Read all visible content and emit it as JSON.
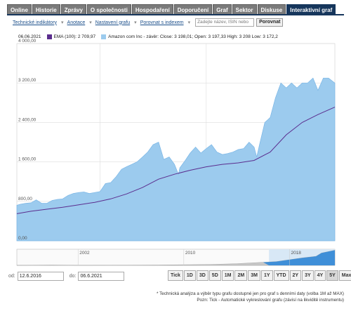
{
  "tabs": [
    {
      "label": "Online",
      "active": false
    },
    {
      "label": "Historie",
      "active": false
    },
    {
      "label": "Zprávy",
      "active": false
    },
    {
      "label": "O společnosti",
      "active": false
    },
    {
      "label": "Hospodaření",
      "active": false
    },
    {
      "label": "Doporučení",
      "active": false
    },
    {
      "label": "Graf",
      "active": false
    },
    {
      "label": "Sektor",
      "active": false
    },
    {
      "label": "Diskuse",
      "active": false
    },
    {
      "label": "Interaktivní graf",
      "active": true
    }
  ],
  "toolbar": {
    "technical": "Technické indikátory",
    "annotation": "Anotace",
    "settings": "Nastavení grafu",
    "compare": "Porovnat s indexem",
    "search_placeholder": "Zadejte název, ISIN nebo",
    "compare_button": "Porovnat"
  },
  "legend": {
    "date": "06.06.2021",
    "ema": "EMA (100): 2 709,97",
    "amazon": "Amazon com Inc - závěr: Close: 3 198,01; Open: 3 197,33 High: 3 208 Low: 3 172,2",
    "ema_color": "#5b2d8e",
    "amazon_color": "#9ccbee"
  },
  "chart_data": {
    "type": "area",
    "ylim": [
      0,
      4000
    ],
    "yticks": [
      "4 000,00",
      "3 200,00",
      "2 400,00",
      "1 600,00",
      "800,00",
      "0,00"
    ],
    "yvalues": [
      4000,
      3200,
      2400,
      1600,
      800,
      0
    ],
    "xlim": [
      "2016-06-12",
      "2021-06-06"
    ],
    "vgrid_dates": [
      "2017-10-01",
      "2019-06-01"
    ],
    "series": [
      {
        "name": "Amazon com Inc",
        "type": "area",
        "x": [
          "2016-06-12",
          "2016-07-01",
          "2016-08-01",
          "2016-09-01",
          "2016-10-01",
          "2016-11-01",
          "2016-12-01",
          "2017-01-01",
          "2017-02-01",
          "2017-03-01",
          "2017-04-01",
          "2017-05-01",
          "2017-06-01",
          "2017-07-01",
          "2017-08-01",
          "2017-09-01",
          "2017-10-01",
          "2017-11-01",
          "2017-12-01",
          "2018-01-01",
          "2018-02-01",
          "2018-03-01",
          "2018-04-01",
          "2018-05-01",
          "2018-06-01",
          "2018-07-01",
          "2018-08-01",
          "2018-09-01",
          "2018-10-01",
          "2018-11-01",
          "2018-12-01",
          "2018-12-24",
          "2019-01-01",
          "2019-02-01",
          "2019-03-01",
          "2019-04-01",
          "2019-05-01",
          "2019-06-01",
          "2019-07-01",
          "2019-08-01",
          "2019-09-01",
          "2019-10-01",
          "2019-11-01",
          "2019-12-01",
          "2020-01-01",
          "2020-02-01",
          "2020-03-01",
          "2020-03-16",
          "2020-04-01",
          "2020-05-01",
          "2020-06-01",
          "2020-07-01",
          "2020-08-01",
          "2020-09-01",
          "2020-10-01",
          "2020-11-01",
          "2020-12-01",
          "2021-01-01",
          "2021-02-01",
          "2021-03-01",
          "2021-04-01",
          "2021-05-01",
          "2021-06-06"
        ],
        "values": [
          720,
          740,
          760,
          770,
          830,
          760,
          760,
          820,
          840,
          850,
          920,
          960,
          980,
          990,
          960,
          980,
          1000,
          1160,
          1180,
          1300,
          1450,
          1500,
          1550,
          1600,
          1700,
          1800,
          1950,
          2000,
          1650,
          1700,
          1550,
          1350,
          1480,
          1630,
          1780,
          1900,
          1780,
          1870,
          1950,
          1800,
          1750,
          1770,
          1800,
          1850,
          1870,
          2000,
          1900,
          1700,
          1950,
          2400,
          2500,
          2900,
          3200,
          3100,
          3200,
          3100,
          3200,
          3200,
          3300,
          3050,
          3300,
          3300,
          3198
        ]
      },
      {
        "name": "EMA (100)",
        "type": "line",
        "x": [
          "2016-06-12",
          "2016-09-01",
          "2016-12-01",
          "2017-03-01",
          "2017-06-01",
          "2017-09-01",
          "2017-12-01",
          "2018-03-01",
          "2018-06-01",
          "2018-09-01",
          "2018-12-01",
          "2019-03-01",
          "2019-06-01",
          "2019-09-01",
          "2019-12-01",
          "2020-03-01",
          "2020-06-01",
          "2020-09-01",
          "2020-12-01",
          "2021-03-01",
          "2021-06-06"
        ],
        "values": [
          550,
          600,
          640,
          680,
          730,
          780,
          850,
          950,
          1080,
          1250,
          1350,
          1430,
          1500,
          1550,
          1580,
          1630,
          1800,
          2150,
          2400,
          2560,
          2710
        ]
      }
    ]
  },
  "navigator": {
    "labels": [
      "2002",
      "2010",
      "2018"
    ],
    "label_dates": [
      "2002-01-01",
      "2010-01-01",
      "2018-01-01"
    ],
    "range": [
      "1997-05-15",
      "2021-06-06"
    ],
    "window": [
      "2016-06-12",
      "2021-06-06"
    ],
    "x": [
      "1997-05-15",
      "2000-01-01",
      "2002-01-01",
      "2006-01-01",
      "2008-01-01",
      "2010-01-01",
      "2012-01-01",
      "2014-01-01",
      "2016-01-01",
      "2017-01-01",
      "2018-01-01",
      "2019-01-01",
      "2020-01-01",
      "2020-06-01",
      "2021-06-06"
    ],
    "values": [
      2,
      80,
      15,
      40,
      80,
      130,
      190,
      350,
      650,
      800,
      1200,
      1600,
      1900,
      2600,
      3200
    ]
  },
  "controls": {
    "from_label": "od:",
    "from_value": "12.6.2016",
    "to_label": "do:",
    "to_value": "06.6.2021",
    "ranges": [
      "Tick",
      "1D",
      "3D",
      "5D",
      "1M",
      "2M",
      "3M",
      "1Y",
      "YTD",
      "2Y",
      "3Y",
      "4Y",
      "5Y",
      "Max"
    ],
    "selected_range": "5Y"
  },
  "footer": {
    "line1": "* Technická analýza a výběr typu grafu dostupné jen pro graf s denními daty (volba 1M až MAX)",
    "line2": "Pozn: Tick - Automatické vykreslování grafu (závisí na likviditě instrumentu)"
  }
}
